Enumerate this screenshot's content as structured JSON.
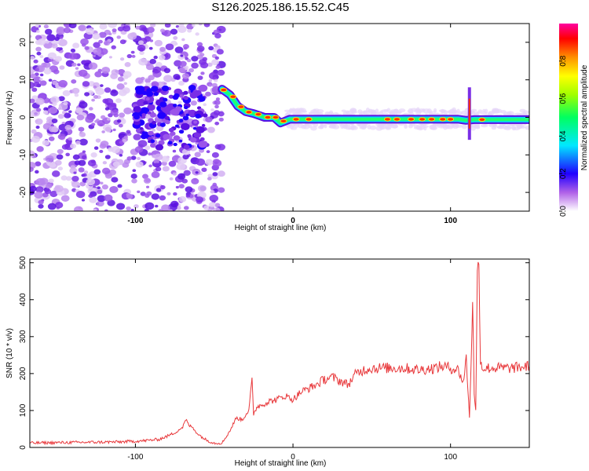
{
  "title": "S126.2025.186.15.52.C45",
  "chart_data": [
    {
      "type": "heatmap",
      "xlabel": "Height of straight line (km)",
      "ylabel": "Frequency (Hz)",
      "xlim": [
        -167,
        150
      ],
      "ylim": [
        -25,
        25
      ],
      "xticks": [
        -100,
        0,
        100
      ],
      "yticks": [
        20,
        10,
        0,
        -10,
        -20
      ],
      "colorbar": {
        "label": "Normalized spectral amplitude",
        "range": [
          0,
          1
        ],
        "ticks": [
          "0.0",
          "0.2",
          "0.4",
          "0.6",
          "0.8"
        ]
      },
      "ridge": [
        {
          "x": -45,
          "y": 7.5
        },
        {
          "x": -40,
          "y": 6
        },
        {
          "x": -35,
          "y": 3
        },
        {
          "x": -30,
          "y": 1.5
        },
        {
          "x": -25,
          "y": 1
        },
        {
          "x": -18,
          "y": 0
        },
        {
          "x": -12,
          "y": 0
        },
        {
          "x": -8,
          "y": -1.5
        },
        {
          "x": -2,
          "y": -0.5
        },
        {
          "x": 20,
          "y": -0.5
        },
        {
          "x": 60,
          "y": -0.5
        },
        {
          "x": 105,
          "y": -0.5
        },
        {
          "x": 110,
          "y": -0.8
        },
        {
          "x": 115,
          "y": -0.6
        },
        {
          "x": 150,
          "y": -0.6
        }
      ]
    },
    {
      "type": "line",
      "xlabel": "Height of straight line (km)",
      "ylabel": "SNR (10 * v/v)",
      "xlim": [
        -167,
        150
      ],
      "ylim": [
        0,
        510
      ],
      "xticks": [
        -100,
        0,
        100
      ],
      "yticks": [
        0,
        100,
        200,
        300,
        400,
        500
      ],
      "color": "#e8383b",
      "series": [
        {
          "x": [
            -167,
            -150,
            -130,
            -110,
            -95,
            -85,
            -80,
            -75,
            -70,
            -68,
            -66,
            -64,
            -62,
            -60,
            -55,
            -50,
            -45,
            -40,
            -36,
            -32,
            -30,
            -28,
            -26,
            -25,
            -24,
            -23,
            -20,
            -15,
            -10,
            -5,
            0,
            5,
            10,
            15,
            20,
            25,
            30,
            35,
            40,
            45,
            50,
            60,
            70,
            80,
            90,
            95,
            100,
            105,
            108,
            110,
            112,
            113,
            114,
            115,
            116,
            117,
            118,
            119,
            120,
            125,
            130,
            140,
            150
          ],
          "y": [
            12,
            13,
            14,
            15,
            18,
            22,
            30,
            40,
            55,
            75,
            60,
            55,
            45,
            35,
            20,
            12,
            12,
            45,
            80,
            75,
            90,
            100,
            180,
            90,
            100,
            110,
            115,
            125,
            130,
            140,
            130,
            150,
            160,
            170,
            185,
            190,
            180,
            170,
            200,
            210,
            215,
            215,
            215,
            210,
            215,
            220,
            215,
            210,
            175,
            240,
            80,
            230,
            400,
            150,
            100,
            460,
            505,
            240,
            215,
            215,
            215,
            215,
            220
          ]
        }
      ]
    }
  ]
}
